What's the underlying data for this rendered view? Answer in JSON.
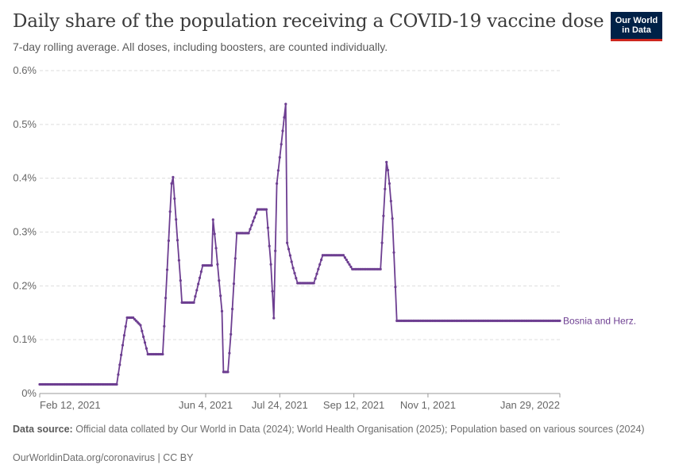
{
  "header": {
    "title": "Daily share of the population receiving a COVID-19 vaccine dose",
    "subtitle": "7-day rolling average. All doses, including boosters, are counted individually.",
    "logo_line1": "Our World",
    "logo_line2": "in Data"
  },
  "footer": {
    "source_label": "Data source:",
    "source_text": "Official data collated by Our World in Data (2024); World Health Organisation (2025); Population based on various sources (2024)",
    "link": "OurWorldinData.org/coronavirus | CC BY"
  },
  "colors": {
    "series": "#6d3e91",
    "grid": "#dddddd",
    "text": "#666666"
  },
  "chart_data": {
    "type": "line",
    "y_unit": "%",
    "ylim": [
      0,
      0.6
    ],
    "y_ticks": [
      "0%",
      "0.1%",
      "0.2%",
      "0.3%",
      "0.4%",
      "0.5%",
      "0.6%"
    ],
    "y_tick_values": [
      0,
      0.1,
      0.2,
      0.3,
      0.4,
      0.5,
      0.6
    ],
    "x_ticks": [
      "Feb 12, 2021",
      "Jun 4, 2021",
      "Jul 24, 2021",
      "Sep 12, 2021",
      "Nov 1, 2021",
      "Jan 29, 2022"
    ],
    "x_tick_dates": [
      "2021-02-12",
      "2021-06-04",
      "2021-07-24",
      "2021-09-12",
      "2021-11-01",
      "2022-01-29"
    ],
    "grid": "horizontal dashed",
    "series": [
      {
        "name": "Bosnia and Herz.",
        "points": [
          [
            "2021-02-12",
            0.017
          ],
          [
            "2021-04-05",
            0.017
          ],
          [
            "2021-04-10",
            0.108
          ],
          [
            "2021-04-12",
            0.141
          ],
          [
            "2021-04-16",
            0.141
          ],
          [
            "2021-04-21",
            0.127
          ],
          [
            "2021-04-26",
            0.073
          ],
          [
            "2021-05-06",
            0.073
          ],
          [
            "2021-05-07",
            0.125
          ],
          [
            "2021-05-09",
            0.23
          ],
          [
            "2021-05-11",
            0.338
          ],
          [
            "2021-05-12",
            0.39
          ],
          [
            "2021-05-13",
            0.402
          ],
          [
            "2021-05-14",
            0.362
          ],
          [
            "2021-05-16",
            0.285
          ],
          [
            "2021-05-18",
            0.21
          ],
          [
            "2021-05-19",
            0.169
          ],
          [
            "2021-05-27",
            0.169
          ],
          [
            "2021-06-02",
            0.238
          ],
          [
            "2021-06-08",
            0.238
          ],
          [
            "2021-06-09",
            0.323
          ],
          [
            "2021-06-11",
            0.27
          ],
          [
            "2021-06-13",
            0.21
          ],
          [
            "2021-06-15",
            0.153
          ],
          [
            "2021-06-16",
            0.04
          ],
          [
            "2021-06-19",
            0.04
          ],
          [
            "2021-06-21",
            0.11
          ],
          [
            "2021-06-25",
            0.298
          ],
          [
            "2021-07-03",
            0.298
          ],
          [
            "2021-07-09",
            0.342
          ],
          [
            "2021-07-15",
            0.342
          ],
          [
            "2021-07-18",
            0.24
          ],
          [
            "2021-07-20",
            0.14
          ],
          [
            "2021-07-22",
            0.39
          ],
          [
            "2021-07-25",
            0.463
          ],
          [
            "2021-07-27",
            0.513
          ],
          [
            "2021-07-28",
            0.538
          ],
          [
            "2021-07-29",
            0.28
          ],
          [
            "2021-08-02",
            0.233
          ],
          [
            "2021-08-05",
            0.205
          ],
          [
            "2021-08-16",
            0.205
          ],
          [
            "2021-08-22",
            0.257
          ],
          [
            "2021-09-05",
            0.257
          ],
          [
            "2021-09-11",
            0.231
          ],
          [
            "2021-09-30",
            0.231
          ],
          [
            "2021-10-01",
            0.28
          ],
          [
            "2021-10-02",
            0.33
          ],
          [
            "2021-10-04",
            0.43
          ],
          [
            "2021-10-05",
            0.415
          ],
          [
            "2021-10-06",
            0.39
          ],
          [
            "2021-10-08",
            0.325
          ],
          [
            "2021-10-09",
            0.262
          ],
          [
            "2021-10-10",
            0.198
          ],
          [
            "2021-10-11",
            0.135
          ],
          [
            "2022-01-29",
            0.135
          ]
        ]
      }
    ]
  }
}
